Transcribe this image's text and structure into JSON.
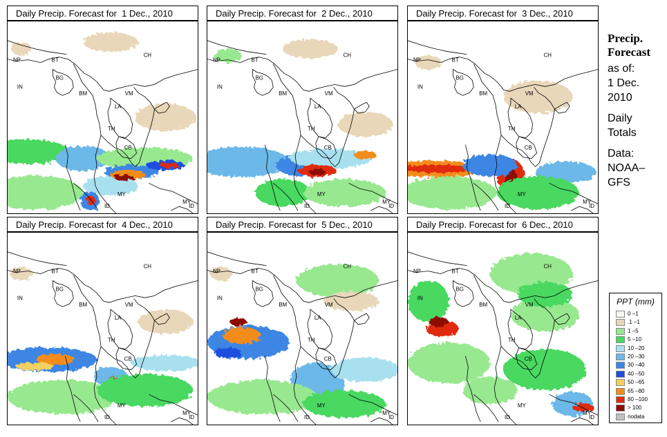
{
  "panels": [
    {
      "title": "Daily Precip. Forecast for  1 Dec., 2010"
    },
    {
      "title": "Daily Precip. Forecast for  2 Dec., 2010"
    },
    {
      "title": "Daily Precip. Forecast for  3 Dec., 2010"
    },
    {
      "title": "Daily Precip. Forecast for  4 Dec., 2010"
    },
    {
      "title": "Daily Precip. Forecast for  5 Dec., 2010"
    },
    {
      "title": "Daily Precip. Forecast for  6 Dec., 2010"
    }
  ],
  "country_labels": [
    "NP",
    "BT",
    "BG",
    "IN",
    "BM",
    "CH",
    "VM",
    "LA",
    "TH",
    "CB",
    "MY",
    "ID",
    "MY",
    "ID"
  ],
  "sidebar": {
    "heading1": "Precip.",
    "heading2": "Forecast",
    "line1": "as of:",
    "line2": "1 Dec.",
    "line3": "2010",
    "line4": "Daily",
    "line5": "Totals",
    "line6": "Data:",
    "line7": "NOAA–",
    "line8": "GFS"
  },
  "legend": {
    "title": "PPT (mm)",
    "items": [
      {
        "label": "0 –1",
        "color": "#f7f7f2"
      },
      {
        "label": ".1 –1",
        "color": "#e8d7b9"
      },
      {
        "label": "1 –5",
        "color": "#98e890"
      },
      {
        "label": "5 –10",
        "color": "#48d860"
      },
      {
        "label": "10 –20",
        "color": "#a8e0f0"
      },
      {
        "label": "20 –30",
        "color": "#6cb8e8"
      },
      {
        "label": "30 –40",
        "color": "#3c86e4"
      },
      {
        "label": "40 –50",
        "color": "#1c50e0"
      },
      {
        "label": "50 –65",
        "color": "#f4d060"
      },
      {
        "label": "65 –80",
        "color": "#f48c1c"
      },
      {
        "label": "80 –100",
        "color": "#e02c0c"
      },
      {
        "label": "> 100",
        "color": "#8c0c04"
      },
      {
        "label": "nodata",
        "color": "#c0c0c0"
      }
    ]
  }
}
